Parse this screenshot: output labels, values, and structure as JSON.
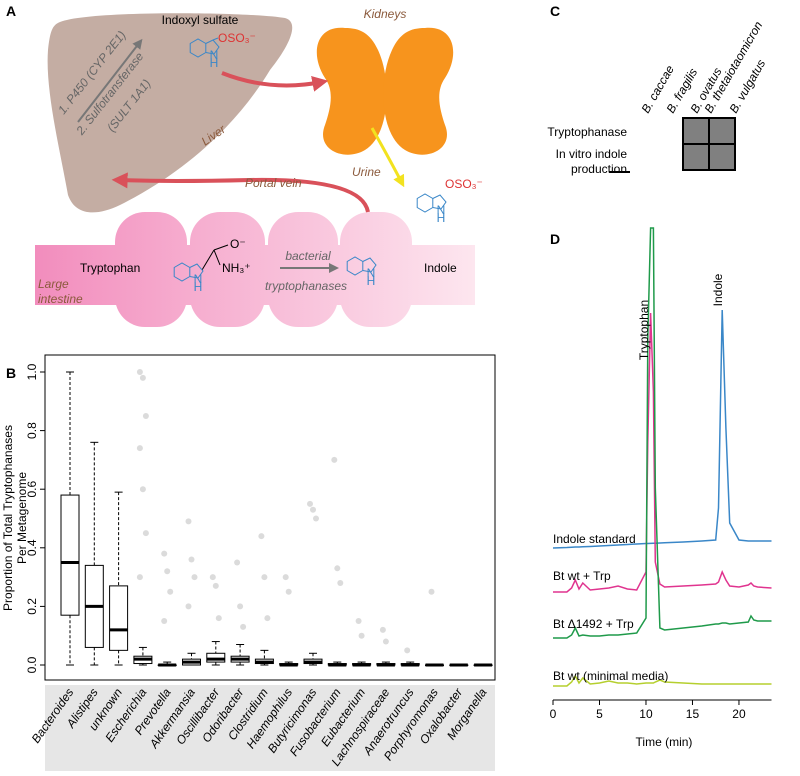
{
  "panel_labels": [
    "A",
    "B",
    "C",
    "D"
  ],
  "diagram": {
    "indoxyl_sulfate": "Indoxyl sulfate",
    "sulfate_group": "OSO₃⁻",
    "kidneys": "Kidneys",
    "step1": "1. P450 (CYP 2E1)",
    "step2": "2. Sulfotransferase",
    "step2b": "(SULT 1A1)",
    "liver": "Liver",
    "urine": "Urine",
    "portal_vein": "Portal vein",
    "tryptophan": "Tryptophan",
    "carboxylate": "O⁻",
    "amine": "NH₃⁺",
    "bacterial": "bacterial",
    "tryptophanases": "tryptophanases",
    "indole": "Indole",
    "large_intestine": [
      "Large",
      "intestine"
    ],
    "atom_n": "N",
    "atom_h": "H"
  },
  "table_c": {
    "columns": [
      "B. caccae",
      "B. fragilis",
      "B. ovatus",
      "B. thetaiotaomicron",
      "B. vulgatus"
    ],
    "rows": [
      {
        "lines": [
          "Tryptophanase"
        ]
      },
      {
        "lines": [
          "In vitro indole",
          "production"
        ]
      }
    ]
  },
  "chart_data": [
    {
      "type": "box",
      "ylabel": [
        "Proportion of Total Tryptophanases",
        "Per Metagenome"
      ],
      "categories": [
        "Bacteroides",
        "Alistipes",
        "unknown",
        "Escherichia",
        "Prevotella",
        "Akkermansia",
        "Oscillibacter",
        "Odoribacter",
        "Clostridium",
        "Haemophilus",
        "Butyricimonas",
        "Fusobacterium",
        "Eubacterium",
        "Lachnospiraceae",
        "Anaerotruncus",
        "Porphyromonas",
        "Oxalobacter",
        "Morganella"
      ],
      "min": [
        0,
        0,
        0,
        0,
        0,
        0,
        0,
        0,
        0,
        0,
        0,
        0,
        0,
        0,
        0,
        0,
        0,
        0
      ],
      "q1": [
        0.17,
        0.06,
        0.05,
        0.005,
        0,
        0,
        0.01,
        0.01,
        0.005,
        0,
        0.005,
        0,
        0,
        0,
        0,
        0,
        0,
        0
      ],
      "median": [
        0.35,
        0.2,
        0.12,
        0.02,
        0,
        0.01,
        0.02,
        0.02,
        0.01,
        0,
        0.01,
        0,
        0,
        0,
        0,
        0,
        0,
        0
      ],
      "q3": [
        0.58,
        0.34,
        0.27,
        0.03,
        0,
        0.02,
        0.04,
        0.03,
        0.02,
        0.005,
        0.02,
        0.005,
        0.005,
        0.005,
        0.005,
        0,
        0,
        0
      ],
      "max": [
        1.0,
        0.76,
        0.59,
        0.06,
        0.01,
        0.04,
        0.08,
        0.07,
        0.05,
        0.01,
        0.04,
        0.01,
        0.01,
        0.01,
        0.01,
        0,
        0,
        0
      ],
      "outliers": [
        [],
        [],
        [],
        [
          1.0,
          0.98,
          0.85,
          0.74,
          0.6,
          0.45,
          0.3
        ],
        [
          0.38,
          0.32,
          0.25,
          0.15
        ],
        [
          0.49,
          0.36,
          0.3,
          0.2
        ],
        [
          0.3,
          0.27,
          0.16
        ],
        [
          0.35,
          0.2,
          0.13
        ],
        [
          0.44,
          0.3,
          0.16
        ],
        [
          0.3,
          0.25
        ],
        [
          0.55,
          0.53,
          0.5
        ],
        [
          0.7,
          0.33,
          0.28
        ],
        [
          0.15,
          0.1
        ],
        [
          0.12,
          0.08
        ],
        [
          0.05
        ],
        [
          0.25
        ],
        [],
        []
      ],
      "box_color": "#000000",
      "point_color": "#999999",
      "ylim": [
        0,
        1.0
      ],
      "yticks": [
        {
          "value": 0,
          "label": "0.0"
        },
        0.2,
        0.4,
        0.6,
        0.8,
        {
          "value": 1.0,
          "label": "1.0"
        }
      ]
    },
    {
      "type": "line",
      "xlabel": "Time (min)",
      "xlim": [
        0,
        23.5
      ],
      "xticks": [
        0,
        5,
        10,
        15,
        20
      ],
      "annotations": [
        "Tryptophan",
        "Indole"
      ],
      "x": [
        0,
        1.5,
        2,
        2.4,
        2.8,
        3.2,
        4,
        5,
        6,
        7,
        8,
        9,
        10,
        10.2,
        10.5,
        10.8,
        11,
        11.5,
        12,
        14,
        16,
        17.5,
        17.8,
        18.2,
        18.6,
        19,
        20,
        21,
        21.3,
        21.6,
        22,
        23.5
      ],
      "series": [
        {
          "name": "Indole standard",
          "color": "#3a87c8",
          "values": [
            0,
            0.5,
            0.8,
            1,
            1,
            1.2,
            1.5,
            2,
            2.5,
            3,
            3.5,
            4,
            4.5,
            4.5,
            4.6,
            4.7,
            4.8,
            5,
            5.2,
            6,
            7,
            8,
            40,
            238,
            120,
            25,
            8,
            7,
            7,
            7,
            7,
            7
          ]
        },
        {
          "name": "Bt wt + Trp",
          "color": "#e0348f",
          "values": [
            0,
            0,
            4,
            12,
            3,
            9,
            2,
            3,
            4,
            6,
            3,
            2,
            20,
            150,
            279,
            200,
            30,
            8,
            5,
            6,
            7,
            8,
            10,
            20,
            12,
            6,
            5,
            7,
            9,
            6,
            5,
            4
          ]
        },
        {
          "name": "Bt Δ1492 + Trp",
          "color": "#1f9a4a",
          "values": [
            0,
            0,
            3,
            10,
            2,
            3,
            2,
            2,
            3,
            3,
            4,
            5,
            20,
            300,
            410,
            410,
            150,
            10,
            8,
            10,
            12,
            14,
            14,
            15,
            15,
            14,
            15,
            16,
            22,
            18,
            17,
            17
          ]
        },
        {
          "name": "Bt wt (minimal media)",
          "color": "#b5cf2e",
          "values": [
            0,
            0,
            4,
            10,
            3,
            8,
            2,
            3,
            5,
            3,
            3,
            2,
            3,
            3,
            3,
            3,
            4,
            6,
            4,
            3,
            2,
            2,
            2,
            2,
            2,
            2,
            2,
            2,
            2,
            2,
            2,
            2
          ]
        }
      ]
    }
  ]
}
